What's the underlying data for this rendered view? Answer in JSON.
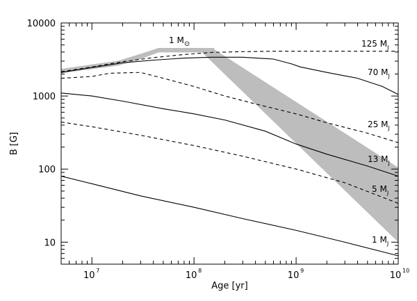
{
  "chart_data": {
    "type": "line",
    "title": "",
    "xlabel": "Age [yr]",
    "ylabel": "B [G]",
    "xscale": "log",
    "yscale": "log",
    "xlim": [
      5000000,
      10000000000
    ],
    "ylim": [
      5,
      10000
    ],
    "x_ticks": [
      {
        "value": 10000000,
        "base": "10",
        "exp": "7"
      },
      {
        "value": 100000000,
        "base": "10",
        "exp": "8"
      },
      {
        "value": 1000000000,
        "base": "10",
        "exp": "9"
      },
      {
        "value": 10000000000,
        "base": "10",
        "exp": "10"
      }
    ],
    "y_ticks": [
      {
        "value": 10,
        "label": "10"
      },
      {
        "value": 100,
        "label": "100"
      },
      {
        "value": 1000,
        "label": "1000"
      },
      {
        "value": 10000,
        "label": "10000"
      }
    ],
    "grid": false,
    "legend": "none",
    "solar_band": {
      "label": "1 M",
      "label_symbol": "⊙",
      "color": "#bdbdbd",
      "upper": [
        [
          5000000,
          2250
        ],
        [
          18000000,
          2900
        ],
        [
          30000000,
          3600
        ],
        [
          45000000,
          4350
        ],
        [
          158000000,
          4350
        ],
        [
          10000000000,
          105
        ]
      ],
      "lower": [
        [
          5000000,
          2050
        ],
        [
          18000000,
          2600
        ],
        [
          30000000,
          3200
        ],
        [
          45000000,
          3950
        ],
        [
          120000000,
          3950
        ],
        [
          10000000000,
          10
        ]
      ]
    },
    "series": [
      {
        "name": "125 M",
        "sub": "J",
        "style": "dashed",
        "points": [
          [
            5000000,
            2150
          ],
          [
            10000000,
            2500
          ],
          [
            20000000,
            2950
          ],
          [
            40000000,
            3350
          ],
          [
            80000000,
            3700
          ],
          [
            150000000,
            3950
          ],
          [
            300000000,
            4050
          ],
          [
            600000000,
            4100
          ],
          [
            1000000000,
            4100
          ],
          [
            3000000000,
            4100
          ],
          [
            10000000000,
            4100
          ]
        ]
      },
      {
        "name": "70 M",
        "sub": "J",
        "style": "solid",
        "points": [
          [
            5000000,
            2100
          ],
          [
            10000000,
            2450
          ],
          [
            20000000,
            2850
          ],
          [
            40000000,
            3100
          ],
          [
            80000000,
            3300
          ],
          [
            150000000,
            3400
          ],
          [
            300000000,
            3400
          ],
          [
            600000000,
            3200
          ],
          [
            900000000,
            2750
          ],
          [
            1100000000,
            2500
          ],
          [
            2000000000,
            2100
          ],
          [
            4000000000,
            1750
          ],
          [
            7000000000,
            1350
          ],
          [
            10000000000,
            1050
          ]
        ]
      },
      {
        "name": "25 M",
        "sub": "J",
        "style": "dashed",
        "points": [
          [
            5000000,
            1750
          ],
          [
            10000000,
            1850
          ],
          [
            15000000,
            2050
          ],
          [
            30000000,
            2100
          ],
          [
            50000000,
            1750
          ],
          [
            100000000,
            1350
          ],
          [
            200000000,
            1000
          ],
          [
            400000000,
            780
          ],
          [
            1000000000,
            570
          ],
          [
            2000000000,
            430
          ],
          [
            5000000000,
            310
          ],
          [
            10000000000,
            230
          ]
        ]
      },
      {
        "name": "13 M",
        "sub": "J",
        "style": "solid",
        "points": [
          [
            5000000,
            1100
          ],
          [
            10000000,
            1000
          ],
          [
            20000000,
            850
          ],
          [
            50000000,
            670
          ],
          [
            100000000,
            570
          ],
          [
            200000000,
            470
          ],
          [
            500000000,
            330
          ],
          [
            1000000000,
            220
          ],
          [
            2000000000,
            160
          ],
          [
            5000000000,
            110
          ],
          [
            10000000000,
            80
          ]
        ]
      },
      {
        "name": "5 M",
        "sub": "J",
        "style": "dashed",
        "points": [
          [
            5000000,
            440
          ],
          [
            10000000,
            380
          ],
          [
            30000000,
            290
          ],
          [
            100000000,
            210
          ],
          [
            300000000,
            150
          ],
          [
            1000000000,
            100
          ],
          [
            3000000000,
            65
          ],
          [
            10000000000,
            34
          ]
        ]
      },
      {
        "name": "1 M",
        "sub": "J",
        "style": "solid",
        "points": [
          [
            5000000,
            80
          ],
          [
            10000000,
            63
          ],
          [
            30000000,
            43
          ],
          [
            100000000,
            30
          ],
          [
            300000000,
            21
          ],
          [
            1000000000,
            14.5
          ],
          [
            3000000000,
            10
          ],
          [
            10000000000,
            6.5
          ]
        ]
      }
    ]
  }
}
